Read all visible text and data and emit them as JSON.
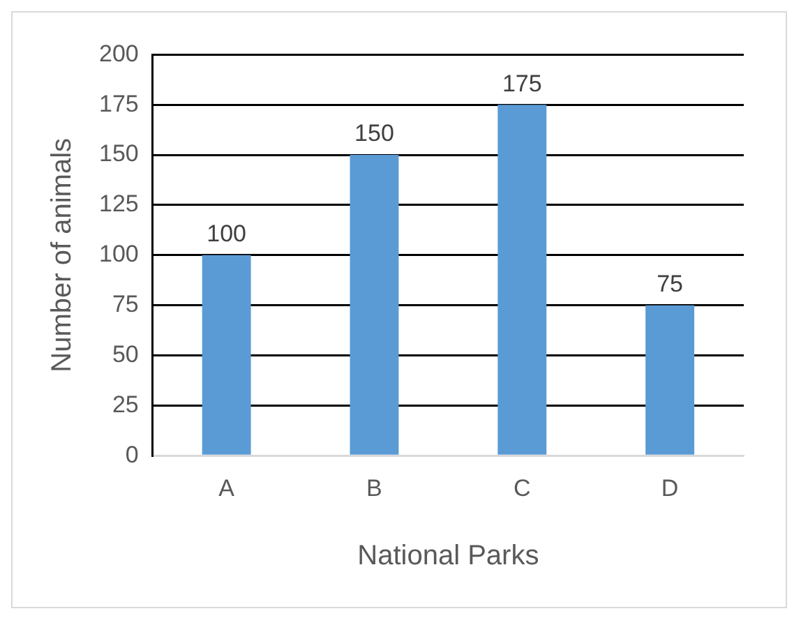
{
  "chart_data": {
    "type": "bar",
    "xlabel": "National Parks",
    "ylabel": "Number of animals",
    "categories": [
      "A",
      "B",
      "C",
      "D"
    ],
    "values": [
      100,
      150,
      175,
      75
    ],
    "color": "#5b9bd5",
    "ylim": [
      0,
      200
    ],
    "yticks": [
      0,
      25,
      50,
      75,
      100,
      125,
      150,
      175,
      200
    ],
    "grid": "y",
    "data_labels": true,
    "legend": false
  }
}
